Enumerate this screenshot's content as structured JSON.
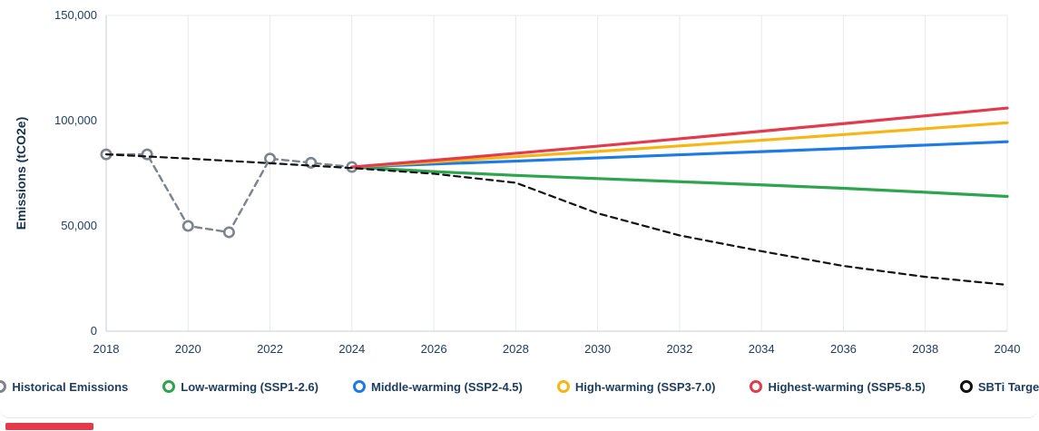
{
  "chart_data": {
    "type": "line",
    "title": "",
    "xlabel": "",
    "ylabel": "Emissions (tCO2e)",
    "xlim": [
      2018,
      2040
    ],
    "ylim": [
      0,
      150000
    ],
    "grid": "vertical",
    "legend_position": "bottom",
    "x_ticks": [
      2018,
      2020,
      2022,
      2024,
      2026,
      2028,
      2030,
      2032,
      2034,
      2036,
      2038,
      2040
    ],
    "y_ticks": [
      0,
      50000,
      100000,
      150000
    ],
    "y_tick_labels": [
      "0",
      "50,000",
      "100,000",
      "150,000"
    ],
    "series": [
      {
        "id": "historical-emissions",
        "name": "Historical Emissions",
        "color": "#7b848e",
        "line": "dashed",
        "width": 2.4,
        "markers": true,
        "x": [
          2018,
          2019,
          2020,
          2021,
          2022,
          2023,
          2024
        ],
        "values": [
          84000,
          84000,
          50000,
          47000,
          82000,
          80000,
          78000
        ]
      },
      {
        "id": "low-warming",
        "name": "Low-warming (SSP1-2.6)",
        "color": "#2da44e",
        "line": "solid",
        "width": 3.2,
        "markers": false,
        "x": [
          2024,
          2026,
          2028,
          2030,
          2032,
          2034,
          2036,
          2038,
          2040
        ],
        "values": [
          78000,
          75800,
          74000,
          72500,
          71000,
          69500,
          67900,
          66000,
          64000
        ]
      },
      {
        "id": "middle-warming",
        "name": "Middle-warming (SSP2-4.5)",
        "color": "#1e7be6",
        "line": "solid",
        "width": 3.2,
        "markers": false,
        "x": [
          2024,
          2026,
          2028,
          2030,
          2032,
          2034,
          2036,
          2038,
          2040
        ],
        "values": [
          78000,
          79400,
          80800,
          82300,
          83800,
          85300,
          86800,
          88400,
          90000
        ]
      },
      {
        "id": "high-warming",
        "name": "High-warming (SSP3-7.0)",
        "color": "#f7b614",
        "line": "solid",
        "width": 3.2,
        "markers": false,
        "x": [
          2024,
          2026,
          2028,
          2030,
          2032,
          2034,
          2036,
          2038,
          2040
        ],
        "values": [
          78000,
          80400,
          82900,
          85400,
          88000,
          90700,
          93400,
          96200,
          99000
        ]
      },
      {
        "id": "highest-warming",
        "name": "Highest-warming (SSP5-8.5)",
        "color": "#e23b4e",
        "line": "solid",
        "width": 3.2,
        "markers": false,
        "x": [
          2024,
          2026,
          2028,
          2030,
          2032,
          2034,
          2036,
          2038,
          2040
        ],
        "values": [
          78000,
          81200,
          84500,
          87900,
          91400,
          95000,
          98600,
          102300,
          106000
        ]
      },
      {
        "id": "sbti-target",
        "name": "SBTi Target",
        "color": "#111111",
        "line": "dashed",
        "width": 2.2,
        "markers": false,
        "x": [
          2018,
          2020,
          2022,
          2024,
          2026,
          2028,
          2030,
          2032,
          2034,
          2036,
          2038,
          2040
        ],
        "values": [
          84000,
          82000,
          79800,
          77500,
          74800,
          70500,
          56000,
          45500,
          38000,
          31000,
          25800,
          22000
        ]
      }
    ]
  },
  "legend": {
    "items": [
      {
        "id": "historical-emissions",
        "label": "Historical Emissions",
        "color": "#7b848e"
      },
      {
        "id": "low-warming",
        "label": "Low-warming (SSP1-2.6)",
        "color": "#2da44e"
      },
      {
        "id": "middle-warming",
        "label": "Middle-warming (SSP2-4.5)",
        "color": "#1e7be6"
      },
      {
        "id": "high-warming",
        "label": "High-warming (SSP3-7.0)",
        "color": "#f7b614"
      },
      {
        "id": "highest-warming",
        "label": "Highest-warming (SSP5-8.5)",
        "color": "#e23b4e"
      },
      {
        "id": "sbti-target",
        "label": "SBTi Target",
        "color": "#111111"
      }
    ]
  }
}
